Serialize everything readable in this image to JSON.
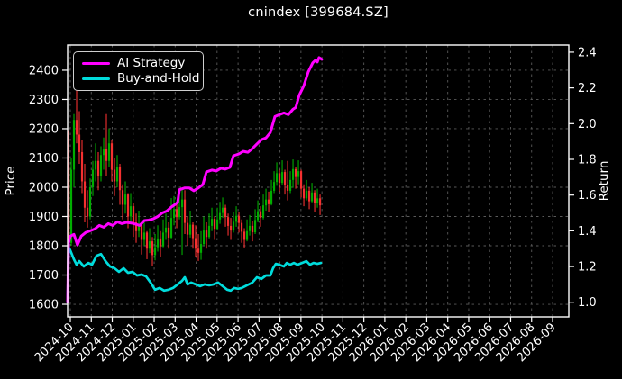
{
  "title": "cnindex [399684.SZ]",
  "legend": {
    "items": [
      {
        "label": "AI Strategy",
        "color": "#ff00ff"
      },
      {
        "label": "Buy-and-Hold",
        "color": "#00dcdc"
      }
    ]
  },
  "colors": {
    "background": "#000000",
    "text": "#ffffff",
    "grid": "#5a5a5a",
    "spine": "#ffffff",
    "up_candle": "#00ad00",
    "down_candle": "#f53030",
    "ai_strategy": "#ff00ff",
    "buy_and_hold": "#00dcdc"
  },
  "axes": {
    "left": {
      "label": "Price",
      "ticks": [
        1600,
        1700,
        1800,
        1900,
        2000,
        2100,
        2200,
        2300,
        2400
      ],
      "range": [
        1557,
        2486
      ]
    },
    "right": {
      "label": "Return",
      "ticks": [
        1.0,
        1.2,
        1.4,
        1.6,
        1.8,
        2.0,
        2.2,
        2.4
      ],
      "range": [
        0.918,
        2.44
      ]
    },
    "x": {
      "labels": [
        "2024-10",
        "2024-11",
        "2024-12",
        "2025-01",
        "2025-02",
        "2025-03",
        "2025-04",
        "2025-05",
        "2025-06",
        "2025-07",
        "2025-08",
        "2025-09",
        "2025-10",
        "2025-11",
        "2025-12",
        "2026-01",
        "2026-02",
        "2026-03",
        "2026-04",
        "2026-05",
        "2026-06",
        "2026-07",
        "2026-08",
        "2026-09"
      ]
    }
  },
  "chart_data": {
    "type": "mixed",
    "x_unit": "months since 2024-10 tick",
    "grid": "dashed, vertical at month ticks, horizontal at price ticks",
    "legend_position": "upper left",
    "series": [
      {
        "name": "cnindex OHLC",
        "type": "candlestick",
        "axis": "price",
        "start": -0.086,
        "step": 0.129,
        "ohlc": [
          [
            2080,
            2195,
            1745,
            1802
          ],
          [
            1810,
            2100,
            1800,
            2060
          ],
          [
            2060,
            2250,
            2000,
            2230
          ],
          [
            2230,
            2335,
            2150,
            2180
          ],
          [
            2180,
            2260,
            2080,
            2120
          ],
          [
            2120,
            2160,
            1980,
            2020
          ],
          [
            2020,
            2080,
            1880,
            1930
          ],
          [
            1930,
            1990,
            1862,
            1900
          ],
          [
            1900,
            2030,
            1890,
            2000
          ],
          [
            2000,
            2090,
            1970,
            2060
          ],
          [
            2060,
            2150,
            2020,
            2090
          ],
          [
            2090,
            2120,
            1990,
            2040
          ],
          [
            2040,
            2140,
            2020,
            2110
          ],
          [
            2110,
            2170,
            2060,
            2130
          ],
          [
            2130,
            2250,
            2040,
            2090
          ],
          [
            2090,
            2200,
            2070,
            2150
          ],
          [
            2150,
            2160,
            2020,
            2060
          ],
          [
            2060,
            2100,
            1970,
            2020
          ],
          [
            2020,
            2110,
            2000,
            2070
          ],
          [
            2070,
            2080,
            1940,
            1990
          ],
          [
            1990,
            2010,
            1890,
            1940
          ],
          [
            1940,
            2020,
            1910,
            1975
          ],
          [
            1975,
            1980,
            1860,
            1900
          ],
          [
            1900,
            1980,
            1880,
            1935
          ],
          [
            1935,
            1945,
            1830,
            1880
          ],
          [
            1880,
            1910,
            1810,
            1850
          ],
          [
            1850,
            1920,
            1830,
            1875
          ],
          [
            1875,
            1880,
            1770,
            1820
          ],
          [
            1820,
            1890,
            1800,
            1845
          ],
          [
            1845,
            1850,
            1754,
            1790
          ],
          [
            1790,
            1860,
            1775,
            1815
          ],
          [
            1815,
            1830,
            1732,
            1768
          ],
          [
            1768,
            1840,
            1750,
            1795
          ],
          [
            1795,
            1870,
            1780,
            1825
          ],
          [
            1825,
            1850,
            1760,
            1798
          ],
          [
            1798,
            1890,
            1795,
            1845
          ],
          [
            1845,
            1910,
            1820,
            1862
          ],
          [
            1862,
            1880,
            1790,
            1828
          ],
          [
            1828,
            1963,
            1825,
            1895
          ],
          [
            1895,
            1970,
            1870,
            1925
          ],
          [
            1925,
            1950,
            1860,
            1898
          ],
          [
            1898,
            1980,
            1890,
            1932
          ],
          [
            1932,
            1994,
            1769,
            1958
          ],
          [
            1958,
            1990,
            1840,
            1878
          ],
          [
            1878,
            1900,
            1800,
            1838
          ],
          [
            1838,
            1920,
            1828,
            1872
          ],
          [
            1872,
            1880,
            1790,
            1826
          ],
          [
            1826,
            1870,
            1760,
            1790
          ],
          [
            1790,
            1840,
            1748,
            1776
          ],
          [
            1776,
            1850,
            1752,
            1806
          ],
          [
            1806,
            1900,
            1800,
            1852
          ],
          [
            1852,
            1880,
            1790,
            1830
          ],
          [
            1830,
            1910,
            1825,
            1868
          ],
          [
            1868,
            1930,
            1850,
            1892
          ],
          [
            1892,
            1900,
            1820,
            1858
          ],
          [
            1858,
            1930,
            1855,
            1890
          ],
          [
            1890,
            1950,
            1875,
            1912
          ],
          [
            1912,
            1965,
            1895,
            1930
          ],
          [
            1930,
            1940,
            1865,
            1898
          ],
          [
            1898,
            1910,
            1835,
            1868
          ],
          [
            1868,
            1895,
            1820,
            1852
          ],
          [
            1852,
            1915,
            1845,
            1882
          ],
          [
            1882,
            1935,
            1865,
            1902
          ],
          [
            1902,
            1915,
            1845,
            1878
          ],
          [
            1878,
            1890,
            1810,
            1848
          ],
          [
            1848,
            1860,
            1794,
            1820
          ],
          [
            1820,
            1890,
            1815,
            1850
          ],
          [
            1850,
            1905,
            1835,
            1868
          ],
          [
            1868,
            1885,
            1815,
            1846
          ],
          [
            1846,
            1925,
            1840,
            1888
          ],
          [
            1888,
            1955,
            1880,
            1918
          ],
          [
            1918,
            1935,
            1865,
            1896
          ],
          [
            1896,
            1975,
            1890,
            1938
          ],
          [
            1938,
            1995,
            1920,
            1958
          ],
          [
            1958,
            1985,
            1915,
            1942
          ],
          [
            1942,
            2025,
            1938,
            1988
          ],
          [
            1988,
            2055,
            1980,
            2018
          ],
          [
            2018,
            2085,
            2005,
            2048
          ],
          [
            2048,
            2060,
            1985,
            2015
          ],
          [
            2015,
            2092,
            2008,
            2052
          ],
          [
            2052,
            2060,
            1975,
            2008
          ],
          [
            2008,
            2090,
            1955,
            1988
          ],
          [
            1988,
            2055,
            1980,
            2025
          ],
          [
            2025,
            2095,
            1998,
            2062
          ],
          [
            2062,
            2070,
            1995,
            2035
          ],
          [
            2035,
            2092,
            2010,
            2055
          ],
          [
            2055,
            2060,
            1965,
            1995
          ],
          [
            1995,
            2010,
            1935,
            1962
          ],
          [
            1962,
            2025,
            1955,
            1988
          ],
          [
            1988,
            2000,
            1925,
            1952
          ],
          [
            1952,
            2015,
            1948,
            1982
          ],
          [
            1982,
            1990,
            1915,
            1945
          ],
          [
            1945,
            1995,
            1930,
            1962
          ],
          [
            1962,
            1975,
            1905,
            1938
          ]
        ]
      },
      {
        "name": "AI Strategy",
        "type": "line",
        "axis": "return",
        "color": "#ff00ff",
        "points": [
          [
            -0.13,
            1.0
          ],
          [
            -0.086,
            1.33
          ],
          [
            0,
            1.37
          ],
          [
            0.17,
            1.38
          ],
          [
            0.34,
            1.32
          ],
          [
            0.52,
            1.37
          ],
          [
            0.73,
            1.39
          ],
          [
            0.95,
            1.4
          ],
          [
            1.16,
            1.41
          ],
          [
            1.38,
            1.43
          ],
          [
            1.59,
            1.42
          ],
          [
            1.81,
            1.44
          ],
          [
            2.02,
            1.43
          ],
          [
            2.24,
            1.45
          ],
          [
            2.45,
            1.44
          ],
          [
            2.67,
            1.447
          ],
          [
            2.97,
            1.442
          ],
          [
            3.31,
            1.43
          ],
          [
            3.53,
            1.457
          ],
          [
            3.74,
            1.46
          ],
          [
            3.96,
            1.467
          ],
          [
            4.17,
            1.48
          ],
          [
            4.39,
            1.5
          ],
          [
            4.6,
            1.51
          ],
          [
            4.82,
            1.533
          ],
          [
            5.03,
            1.55
          ],
          [
            5.12,
            1.56
          ],
          [
            5.2,
            1.63
          ],
          [
            5.46,
            1.64
          ],
          [
            5.67,
            1.64
          ],
          [
            5.89,
            1.624
          ],
          [
            6.11,
            1.64
          ],
          [
            6.32,
            1.659
          ],
          [
            6.49,
            1.73
          ],
          [
            6.75,
            1.74
          ],
          [
            6.96,
            1.735
          ],
          [
            7.18,
            1.75
          ],
          [
            7.39,
            1.745
          ],
          [
            7.61,
            1.755
          ],
          [
            7.78,
            1.82
          ],
          [
            8.04,
            1.83
          ],
          [
            8.25,
            1.845
          ],
          [
            8.47,
            1.84
          ],
          [
            8.68,
            1.86
          ],
          [
            8.9,
            1.886
          ],
          [
            9.11,
            1.91
          ],
          [
            9.33,
            1.92
          ],
          [
            9.54,
            1.95
          ],
          [
            9.76,
            2.04
          ],
          [
            9.97,
            2.05
          ],
          [
            10.19,
            2.06
          ],
          [
            10.4,
            2.05
          ],
          [
            10.62,
            2.08
          ],
          [
            10.75,
            2.09
          ],
          [
            10.92,
            2.16
          ],
          [
            11.13,
            2.21
          ],
          [
            11.35,
            2.29
          ],
          [
            11.56,
            2.34
          ],
          [
            11.69,
            2.355
          ],
          [
            11.78,
            2.345
          ],
          [
            11.86,
            2.37
          ],
          [
            11.99,
            2.36
          ]
        ]
      },
      {
        "name": "Buy-and-Hold",
        "type": "line",
        "axis": "return",
        "color": "#00dcdc",
        "points": [
          [
            -0.13,
            1.0
          ],
          [
            -0.086,
            1.31
          ],
          [
            0,
            1.29
          ],
          [
            0.17,
            1.24
          ],
          [
            0.3,
            1.21
          ],
          [
            0.43,
            1.23
          ],
          [
            0.64,
            1.2
          ],
          [
            0.86,
            1.22
          ],
          [
            1.03,
            1.21
          ],
          [
            1.25,
            1.26
          ],
          [
            1.46,
            1.27
          ],
          [
            1.68,
            1.23
          ],
          [
            1.89,
            1.2
          ],
          [
            2.11,
            1.19
          ],
          [
            2.32,
            1.17
          ],
          [
            2.54,
            1.19
          ],
          [
            2.75,
            1.165
          ],
          [
            2.97,
            1.17
          ],
          [
            3.18,
            1.15
          ],
          [
            3.4,
            1.155
          ],
          [
            3.61,
            1.145
          ],
          [
            3.83,
            1.11
          ],
          [
            4.04,
            1.07
          ],
          [
            4.26,
            1.08
          ],
          [
            4.47,
            1.065
          ],
          [
            4.69,
            1.07
          ],
          [
            4.9,
            1.08
          ],
          [
            5.12,
            1.1
          ],
          [
            5.33,
            1.12
          ],
          [
            5.46,
            1.14
          ],
          [
            5.59,
            1.1
          ],
          [
            5.76,
            1.11
          ],
          [
            5.98,
            1.1
          ],
          [
            6.19,
            1.09
          ],
          [
            6.41,
            1.1
          ],
          [
            6.62,
            1.095
          ],
          [
            6.83,
            1.1
          ],
          [
            7.05,
            1.11
          ],
          [
            7.27,
            1.09
          ],
          [
            7.48,
            1.07
          ],
          [
            7.65,
            1.065
          ],
          [
            7.82,
            1.08
          ],
          [
            8.0,
            1.075
          ],
          [
            8.17,
            1.08
          ],
          [
            8.34,
            1.09
          ],
          [
            8.51,
            1.1
          ],
          [
            8.68,
            1.11
          ],
          [
            8.9,
            1.14
          ],
          [
            9.11,
            1.13
          ],
          [
            9.33,
            1.15
          ],
          [
            9.54,
            1.15
          ],
          [
            9.67,
            1.19
          ],
          [
            9.8,
            1.215
          ],
          [
            9.97,
            1.21
          ],
          [
            10.19,
            1.2
          ],
          [
            10.32,
            1.22
          ],
          [
            10.49,
            1.21
          ],
          [
            10.66,
            1.22
          ],
          [
            10.83,
            1.21
          ],
          [
            11.05,
            1.22
          ],
          [
            11.26,
            1.23
          ],
          [
            11.43,
            1.21
          ],
          [
            11.6,
            1.22
          ],
          [
            11.78,
            1.215
          ],
          [
            11.95,
            1.22
          ]
        ]
      }
    ]
  }
}
